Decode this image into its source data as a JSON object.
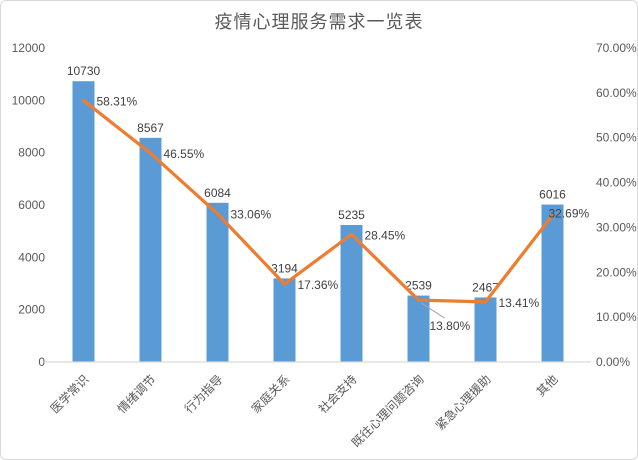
{
  "title": "疫情心理服务需求一览表",
  "colors": {
    "bar": "#5b9bd5",
    "line": "#ed7d31",
    "axis_line": "#d9d9d9",
    "tick_text": "#595959",
    "data_label_text": "#404040",
    "leader_line": "#a6a6a6",
    "background": "#ffffff",
    "frame_border": "#d9d9d9"
  },
  "chart_data": {
    "type": "bar",
    "subtype": "combo-bar-line-dual-axis",
    "title": "疫情心理服务需求一览表",
    "xlabel": "",
    "ylabel": "",
    "grid": false,
    "legend_position": "none",
    "categories": [
      "医学常识",
      "情绪调节",
      "行为指导",
      "家庭关系",
      "社会支持",
      "既往心理问题咨询",
      "紧急心理援助",
      "其他"
    ],
    "series": [
      {
        "name": "需求数量",
        "type": "bar",
        "axis": "left",
        "color": "#5b9bd5",
        "values": [
          10730,
          8567,
          6084,
          3194,
          5235,
          2539,
          2467,
          6016
        ],
        "labels": [
          "10730",
          "8567",
          "6084",
          "3194",
          "5235",
          "2539",
          "2467",
          "6016"
        ]
      },
      {
        "name": "需求占比",
        "type": "line",
        "axis": "right",
        "color": "#ed7d31",
        "values": [
          58.31,
          46.55,
          33.06,
          17.36,
          28.45,
          13.8,
          13.41,
          32.69
        ],
        "labels": [
          "58.31%",
          "46.55%",
          "33.06%",
          "17.36%",
          "28.45%",
          "13.80%",
          "13.41%",
          "32.69%"
        ]
      }
    ],
    "left_axis": {
      "min": 0,
      "max": 12000,
      "step": 2000,
      "ticks": [
        "0",
        "2000",
        "4000",
        "6000",
        "8000",
        "10000",
        "12000"
      ]
    },
    "right_axis": {
      "min": 0,
      "max": 70,
      "step": 10,
      "ticks": [
        "0.00%",
        "10.00%",
        "20.00%",
        "30.00%",
        "40.00%",
        "50.00%",
        "60.00%",
        "70.00%"
      ]
    }
  }
}
